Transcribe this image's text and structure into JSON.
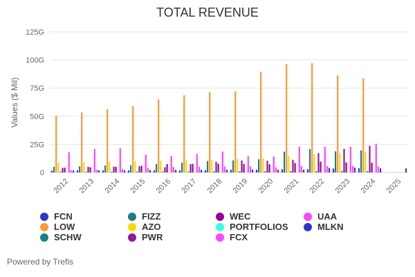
{
  "chart_data": {
    "type": "bar",
    "title": "TOTAL REVENUE",
    "xlabel": "",
    "ylabel": "Values ($ Mil)",
    "ylim": [
      0,
      125000
    ],
    "yticks": [
      0,
      25000,
      50000,
      75000,
      100000,
      125000
    ],
    "ytick_labels": [
      "0",
      "25G",
      "50G",
      "75G",
      "100G",
      "125G"
    ],
    "grid": true,
    "legend_position": "bottom",
    "categories": [
      "2012",
      "2013",
      "2014",
      "2015",
      "2016",
      "2017",
      "2018",
      "2019",
      "2020",
      "2021",
      "2022",
      "2023",
      "2024",
      "2025"
    ],
    "series": [
      {
        "name": "FCN",
        "color": "#3333cc",
        "values": [
          1600,
          1800,
          1800,
          1750,
          1800,
          1800,
          2000,
          2300,
          2400,
          2800,
          2900,
          3500,
          3700,
          null
        ]
      },
      {
        "name": "SCHW",
        "color": "#1a8080",
        "values": [
          5000,
          5400,
          6100,
          6400,
          7500,
          8600,
          10100,
          10700,
          11700,
          18500,
          20800,
          18800,
          19600,
          null
        ]
      },
      {
        "name": "LOW",
        "color": "#f79a38",
        "values": [
          50500,
          53400,
          56200,
          59100,
          65000,
          68600,
          71300,
          72100,
          89600,
          96300,
          97100,
          86400,
          83700,
          null
        ]
      },
      {
        "name": "AZO",
        "color": "#ffd700",
        "values": [
          8600,
          9100,
          9500,
          10200,
          10600,
          10900,
          11200,
          11900,
          12600,
          14600,
          16300,
          17500,
          18500,
          null
        ]
      },
      {
        "name": "FIZZ",
        "color": "#1a8080",
        "values": [
          650,
          640,
          650,
          800,
          850,
          830,
          1000,
          1040,
          1080,
          1100,
          1180,
          1200,
          1210,
          null
        ]
      },
      {
        "name": "PWR",
        "color": "#8b1a9e",
        "values": [
          4000,
          5000,
          5100,
          5500,
          4600,
          7300,
          9500,
          10600,
          10400,
          11200,
          17100,
          20900,
          23700,
          null
        ]
      },
      {
        "name": "WEC",
        "color": "#990099",
        "values": [
          4250,
          4520,
          5020,
          5930,
          7470,
          7650,
          7680,
          7520,
          7240,
          8320,
          9600,
          8890,
          8600,
          null
        ]
      },
      {
        "name": "PORTFOLIOS",
        "color": "#33ffee",
        "values": [
          null,
          null,
          null,
          null,
          null,
          null,
          null,
          null,
          null,
          null,
          null,
          null,
          null,
          null
        ]
      },
      {
        "name": "FCX",
        "color": "#ff44ff",
        "values": [
          18000,
          20900,
          21400,
          15900,
          14800,
          16400,
          18600,
          14400,
          14200,
          22800,
          22800,
          22800,
          25500,
          null
        ]
      },
      {
        "name": "UAA",
        "color": "#ff44ff",
        "values": [
          1800,
          2300,
          3100,
          4000,
          4800,
          5000,
          5200,
          5300,
          4500,
          5700,
          5700,
          5900,
          5200,
          null
        ]
      },
      {
        "name": "MLKN",
        "color": "#3333cc",
        "values": [
          1740,
          1880,
          1880,
          2140,
          2260,
          2280,
          2380,
          2570,
          2490,
          2470,
          4070,
          4370,
          3670,
          3600
        ]
      }
    ]
  },
  "legend": {
    "items": [
      {
        "name": "FCN",
        "color": "#3333cc"
      },
      {
        "name": "LOW",
        "color": "#f79a38"
      },
      {
        "name": "SCHW",
        "color": "#1a8080"
      },
      {
        "name": "FIZZ",
        "color": "#1a8080"
      },
      {
        "name": "AZO",
        "color": "#ffd700"
      },
      {
        "name": "PWR",
        "color": "#8b1a9e"
      },
      {
        "name": "WEC",
        "color": "#990099"
      },
      {
        "name": "PORTFOLIOS",
        "color": "#33ffee"
      },
      {
        "name": "FCX",
        "color": "#ff44ff"
      },
      {
        "name": "UAA",
        "color": "#ff44ff"
      },
      {
        "name": "MLKN",
        "color": "#3333cc"
      }
    ]
  },
  "footer": {
    "text": "Powered by Trefis"
  }
}
